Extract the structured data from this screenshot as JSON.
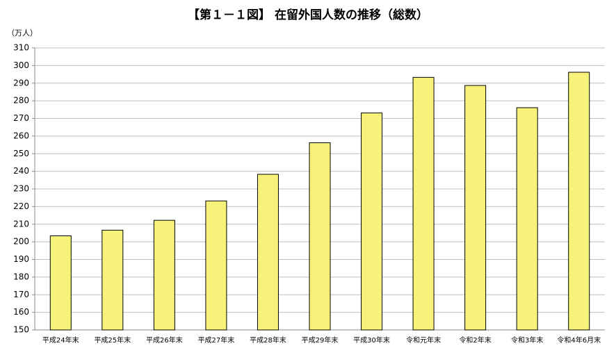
{
  "chart_data": {
    "type": "bar",
    "title": "【第１－１図】 在留外国人数の推移（総数）",
    "y_unit": "（万人）",
    "categories": [
      "平成24年末",
      "平成25年末",
      "平成26年末",
      "平成27年末",
      "平成28年末",
      "平成29年末",
      "平成30年末",
      "令和元年末",
      "令和2年末",
      "令和3年末",
      "令和4年6月末"
    ],
    "values": [
      203.4,
      206.6,
      212.2,
      223.2,
      238.3,
      256.2,
      273.1,
      293.3,
      288.7,
      276.1,
      296.2
    ],
    "color": "#f6f27a",
    "ylim": [
      150,
      310
    ],
    "yticks": [
      150,
      160,
      170,
      180,
      190,
      200,
      210,
      220,
      230,
      240,
      250,
      260,
      270,
      280,
      290,
      300,
      310
    ],
    "grid": true
  }
}
